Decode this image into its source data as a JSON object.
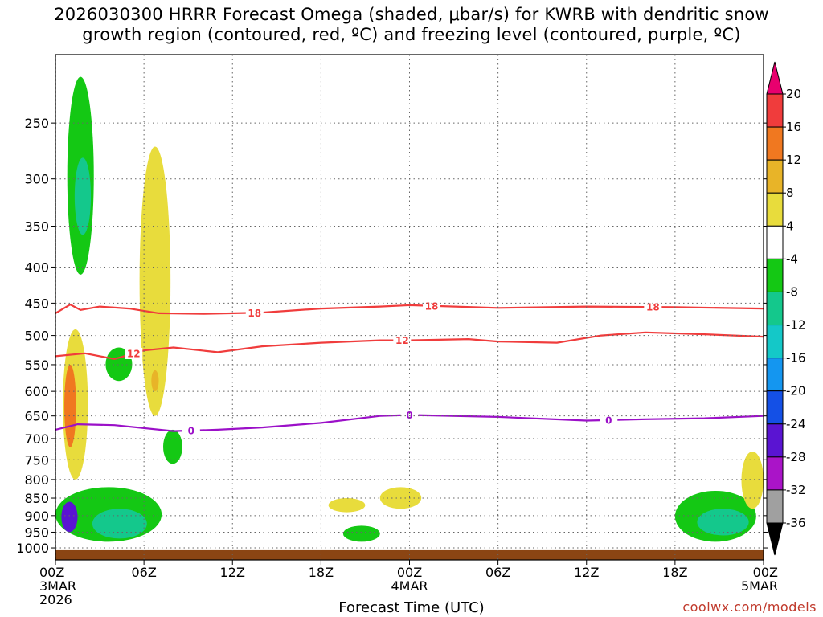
{
  "title": {
    "line1": "2026030300 HRRR Forecast Omega (shaded, μbar/s) for KWRB with dendritic snow",
    "line2": "growth region (contoured, red, ºC) and freezing level (contoured, purple, ºC)"
  },
  "xlabel": "Forecast Time (UTC)",
  "credit": "coolwx.com/models",
  "chart_data": {
    "type": "heatmap",
    "title": "2026030300 HRRR Forecast Omega (shaded, μbar/s) for KWRB with dendritic snow growth region (contoured, red, ºC) and freezing level (contoured, purple, ºC)",
    "xlabel": "Forecast Time (UTC)",
    "ylabel": "",
    "x_ticks": [
      {
        "hour": 0,
        "label": "00Z",
        "sub1": "3MAR",
        "sub2": "2026"
      },
      {
        "hour": 6,
        "label": "06Z"
      },
      {
        "hour": 12,
        "label": "12Z"
      },
      {
        "hour": 18,
        "label": "18Z"
      },
      {
        "hour": 24,
        "label": "00Z",
        "sub1": "4MAR"
      },
      {
        "hour": 30,
        "label": "06Z"
      },
      {
        "hour": 36,
        "label": "12Z"
      },
      {
        "hour": 42,
        "label": "18Z"
      },
      {
        "hour": 48,
        "label": "00Z",
        "sub1": "5MAR"
      }
    ],
    "xlim": [
      0,
      48
    ],
    "y_ticks": [
      250,
      300,
      350,
      400,
      450,
      500,
      550,
      600,
      650,
      700,
      750,
      800,
      850,
      900,
      950,
      1000
    ],
    "ylim": [
      1040,
      200
    ],
    "y_scale": "log",
    "colorbar": {
      "labels": [
        "20",
        "16",
        "12",
        "8",
        "4",
        "-4",
        "-8",
        "-12",
        "-16",
        "-20",
        "-24",
        "-28",
        "-32",
        "-36"
      ],
      "colors": [
        "#e8006e",
        "#f03c3c",
        "#f07820",
        "#e8b428",
        "#e8dc3c",
        "#ffffff",
        "#14c814",
        "#14c88c",
        "#14c8c8",
        "#1496f0",
        "#1450e6",
        "#5a14d2",
        "#aa14c8",
        "#a0a0a0",
        "#000000"
      ]
    },
    "contours": [
      {
        "name": "18",
        "color": "#f03c3c",
        "label": "18",
        "points": [
          [
            0,
            465
          ],
          [
            1,
            452
          ],
          [
            1.7,
            460
          ],
          [
            3,
            455
          ],
          [
            5,
            458
          ],
          [
            7,
            465
          ],
          [
            10,
            466
          ],
          [
            14,
            464
          ],
          [
            18,
            458
          ],
          [
            22,
            455
          ],
          [
            24,
            453
          ],
          [
            30,
            457
          ],
          [
            36,
            455
          ],
          [
            42,
            456
          ],
          [
            48,
            458
          ]
        ],
        "label_hours": [
          13.5,
          25.5,
          40.5
        ]
      },
      {
        "name": "12",
        "color": "#f03c3c",
        "label": "12",
        "points": [
          [
            0,
            535
          ],
          [
            2,
            530
          ],
          [
            4,
            540
          ],
          [
            6,
            525
          ],
          [
            8,
            520
          ],
          [
            11,
            528
          ],
          [
            14,
            518
          ],
          [
            18,
            512
          ],
          [
            22,
            508
          ],
          [
            24,
            508
          ],
          [
            28,
            506
          ],
          [
            30,
            510
          ],
          [
            34,
            512
          ],
          [
            37,
            500
          ],
          [
            40,
            495
          ],
          [
            44,
            498
          ],
          [
            48,
            502
          ]
        ],
        "label_hours": [
          5.3,
          23.5
        ]
      },
      {
        "name": "0",
        "color": "#9b10c8",
        "label": "0",
        "points": [
          [
            0,
            680
          ],
          [
            1.5,
            668
          ],
          [
            4,
            670
          ],
          [
            8,
            683
          ],
          [
            11,
            680
          ],
          [
            14,
            675
          ],
          [
            18,
            665
          ],
          [
            22,
            650
          ],
          [
            24,
            648
          ],
          [
            30,
            652
          ],
          [
            36,
            660
          ],
          [
            40,
            657
          ],
          [
            44,
            655
          ],
          [
            48,
            650
          ]
        ],
        "label_hours": [
          9.2,
          24.0,
          37.5
        ]
      }
    ],
    "shaded_features": [
      {
        "value": -8,
        "color": "#14c814",
        "hours": [
          0.8,
          2.6
        ],
        "p": [
          215,
          410
        ]
      },
      {
        "value": -12,
        "color": "#14c88c",
        "hours": [
          1.3,
          2.4
        ],
        "p": [
          280,
          360
        ]
      },
      {
        "value": 4,
        "color": "#e8dc3c",
        "hours": [
          5.7,
          7.8
        ],
        "p": [
          270,
          650
        ]
      },
      {
        "value": 8,
        "color": "#e8b428",
        "hours": [
          6.5,
          7.0
        ],
        "p": [
          560,
          600
        ]
      },
      {
        "value": 4,
        "color": "#e8dc3c",
        "hours": [
          0.5,
          2.2
        ],
        "p": [
          490,
          800
        ]
      },
      {
        "value": 12,
        "color": "#f07820",
        "hours": [
          0.6,
          1.4
        ],
        "p": [
          550,
          720
        ]
      },
      {
        "value": -8,
        "color": "#14c814",
        "hours": [
          3.4,
          5.2
        ],
        "p": [
          520,
          580
        ]
      },
      {
        "value": -8,
        "color": "#14c814",
        "hours": [
          7.3,
          8.6
        ],
        "p": [
          680,
          760
        ]
      },
      {
        "value": -8,
        "color": "#14c814",
        "hours": [
          0,
          7.2
        ],
        "p": [
          820,
          980
        ]
      },
      {
        "value": -12,
        "color": "#14c88c",
        "hours": [
          2.5,
          6.2
        ],
        "p": [
          880,
          970
        ]
      },
      {
        "value": -24,
        "color": "#5a14d2",
        "hours": [
          0.4,
          1.5
        ],
        "p": [
          860,
          950
        ]
      },
      {
        "value": 4,
        "color": "#e8dc3c",
        "hours": [
          18.5,
          21
        ],
        "p": [
          850,
          890
        ]
      },
      {
        "value": -8,
        "color": "#14c814",
        "hours": [
          19.5,
          22
        ],
        "p": [
          930,
          980
        ]
      },
      {
        "value": 4,
        "color": "#e8dc3c",
        "hours": [
          22,
          24.8
        ],
        "p": [
          820,
          880
        ]
      },
      {
        "value": -8,
        "color": "#14c814",
        "hours": [
          42,
          47.5
        ],
        "p": [
          830,
          980
        ]
      },
      {
        "value": -12,
        "color": "#14c88c",
        "hours": [
          43.5,
          47
        ],
        "p": [
          880,
          960
        ]
      },
      {
        "value": 4,
        "color": "#e8dc3c",
        "hours": [
          46.5,
          48
        ],
        "p": [
          730,
          880
        ]
      }
    ],
    "surface_fill": {
      "color": "#8b4513",
      "p_top": 1005
    }
  }
}
